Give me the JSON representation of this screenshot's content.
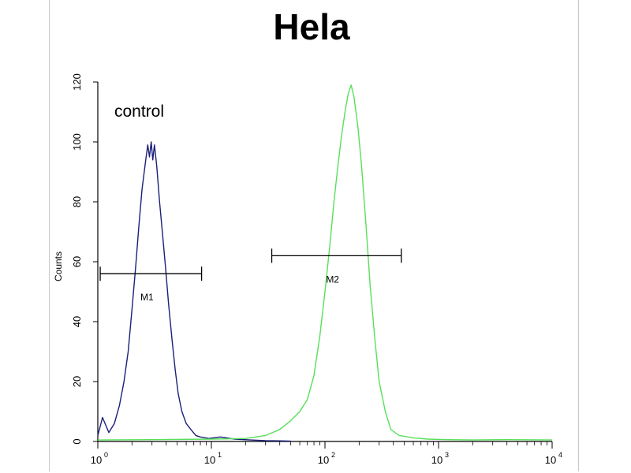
{
  "chart_data": {
    "type": "line",
    "title": "Hela",
    "xlabel": "",
    "ylabel": "Counts",
    "xscale": "log",
    "xlim": [
      1,
      10000
    ],
    "ylim": [
      0,
      120
    ],
    "x_tick_values": [
      1,
      10,
      100,
      1000,
      10000
    ],
    "x_tick_labels": [
      {
        "base": "10",
        "exp": "0"
      },
      {
        "base": "10",
        "exp": "1"
      },
      {
        "base": "10",
        "exp": "2"
      },
      {
        "base": "10",
        "exp": "3"
      },
      {
        "base": "10",
        "exp": "4"
      }
    ],
    "y_ticks": [
      0,
      20,
      40,
      60,
      80,
      100,
      120
    ],
    "grid": false,
    "annotation": "control",
    "series": [
      {
        "color": "#1c1f7a",
        "points": [
          [
            1.0,
            2
          ],
          [
            1.1,
            8
          ],
          [
            1.25,
            3
          ],
          [
            1.4,
            6
          ],
          [
            1.55,
            12
          ],
          [
            1.7,
            20
          ],
          [
            1.85,
            30
          ],
          [
            2.0,
            44
          ],
          [
            2.15,
            58
          ],
          [
            2.3,
            72
          ],
          [
            2.45,
            84
          ],
          [
            2.6,
            92
          ],
          [
            2.75,
            99
          ],
          [
            2.85,
            95
          ],
          [
            2.95,
            100
          ],
          [
            3.05,
            94
          ],
          [
            3.15,
            99
          ],
          [
            3.3,
            92
          ],
          [
            3.5,
            80
          ],
          [
            3.7,
            70
          ],
          [
            3.95,
            58
          ],
          [
            4.2,
            46
          ],
          [
            4.5,
            34
          ],
          [
            4.8,
            24
          ],
          [
            5.1,
            16
          ],
          [
            5.5,
            10
          ],
          [
            6.0,
            6
          ],
          [
            6.6,
            4
          ],
          [
            7.3,
            2
          ],
          [
            8.0,
            1.5
          ],
          [
            9.5,
            1
          ],
          [
            12,
            1.5
          ],
          [
            16,
            0.8
          ],
          [
            22,
            0.5
          ],
          [
            30,
            0.3
          ],
          [
            40,
            0.2
          ],
          [
            50,
            0.1
          ]
        ]
      },
      {
        "color": "#58e05a",
        "points": [
          [
            1.0,
            0.5
          ],
          [
            3,
            0.6
          ],
          [
            10,
            0.8
          ],
          [
            20,
            1
          ],
          [
            30,
            2
          ],
          [
            40,
            4
          ],
          [
            50,
            7
          ],
          [
            60,
            10
          ],
          [
            70,
            14
          ],
          [
            80,
            22
          ],
          [
            90,
            35
          ],
          [
            100,
            50
          ],
          [
            110,
            65
          ],
          [
            120,
            80
          ],
          [
            130,
            92
          ],
          [
            140,
            102
          ],
          [
            150,
            110
          ],
          [
            160,
            116
          ],
          [
            170,
            119
          ],
          [
            180,
            115
          ],
          [
            195,
            105
          ],
          [
            210,
            92
          ],
          [
            230,
            72
          ],
          [
            250,
            52
          ],
          [
            275,
            34
          ],
          [
            300,
            20
          ],
          [
            340,
            10
          ],
          [
            380,
            4
          ],
          [
            450,
            2
          ],
          [
            600,
            1.2
          ],
          [
            800,
            0.8
          ],
          [
            1200,
            0.6
          ],
          [
            2000,
            0.5
          ],
          [
            4000,
            0.6
          ],
          [
            10000,
            0.5
          ]
        ]
      }
    ],
    "markers": [
      {
        "label": "M1",
        "x_start": 1.05,
        "x_end": 8.2,
        "y": 56
      },
      {
        "label": "M2",
        "x_start": 34,
        "x_end": 470,
        "y": 62
      }
    ]
  }
}
